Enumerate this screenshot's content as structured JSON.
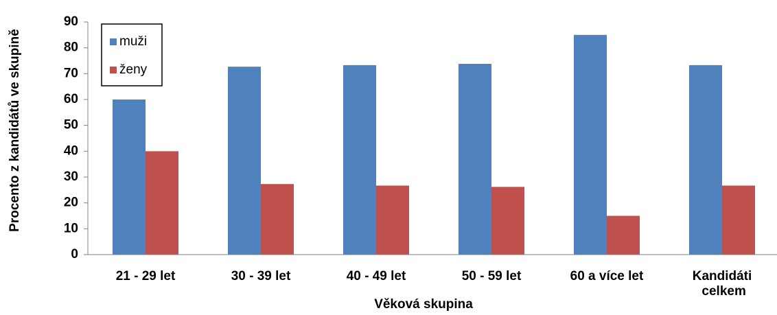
{
  "chart_data": {
    "type": "bar",
    "categories": [
      "21 - 29 let",
      "30 - 39 let",
      "40 - 49 let",
      "50 - 59 let",
      "60 a více let",
      "Kandidáti celkem"
    ],
    "series": [
      {
        "name": "muži",
        "color": "#4f81bd",
        "values": [
          60,
          72.7,
          73.3,
          73.8,
          85,
          73.3
        ]
      },
      {
        "name": "ženy",
        "color": "#c0504d",
        "values": [
          40,
          27.3,
          26.7,
          26.2,
          15,
          26.7
        ]
      }
    ],
    "xlabel": "Věková skupina",
    "ylabel": "Procento z kandidátů ve skupině",
    "ylim": [
      0,
      90
    ],
    "yticks": [
      0,
      10,
      20,
      30,
      40,
      50,
      60,
      70,
      80,
      90
    ],
    "grid": false,
    "legend": "upper left"
  }
}
